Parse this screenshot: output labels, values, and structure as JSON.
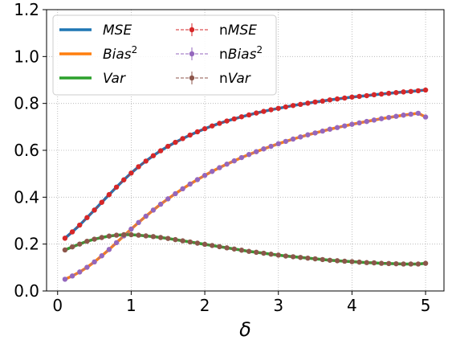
{
  "chart_data": {
    "type": "line",
    "title": "",
    "xlabel": "δ",
    "ylabel": "",
    "xlim": [
      -0.15,
      5.25
    ],
    "ylim": [
      0.0,
      1.2
    ],
    "xticks": [
      0,
      1,
      2,
      3,
      4,
      5
    ],
    "xtick_labels": [
      "0",
      "1",
      "2",
      "3",
      "4",
      "5"
    ],
    "yticks": [
      0.0,
      0.2,
      0.4,
      0.6,
      0.8,
      1.0,
      1.2
    ],
    "ytick_labels": [
      "0.0",
      "0.2",
      "0.4",
      "0.6",
      "0.8",
      "1.0",
      "1.2"
    ],
    "grid": true,
    "legend_position": "top-left",
    "legend_columns": 2,
    "x": [
      0.1,
      0.2,
      0.3,
      0.4,
      0.5,
      0.6,
      0.7,
      0.8,
      0.9,
      1.0,
      1.1,
      1.2,
      1.3,
      1.4,
      1.5,
      1.6,
      1.7,
      1.8,
      1.9,
      2.0,
      2.1,
      2.2,
      2.3,
      2.4,
      2.5,
      2.6,
      2.7,
      2.8,
      2.9,
      3.0,
      3.1,
      3.2,
      3.3,
      3.4,
      3.5,
      3.6,
      3.7,
      3.8,
      3.9,
      4.0,
      4.1,
      4.2,
      4.3,
      4.4,
      4.5,
      4.6,
      4.7,
      4.8,
      4.9,
      5.0
    ],
    "series": [
      {
        "name": "MSE",
        "name_parts": [
          "MSE",
          ""
        ],
        "kind": "line",
        "color": "#1f77b4",
        "values": [
          0.225,
          0.252,
          0.281,
          0.313,
          0.345,
          0.378,
          0.411,
          0.443,
          0.474,
          0.503,
          0.53,
          0.554,
          0.577,
          0.598,
          0.617,
          0.634,
          0.65,
          0.665,
          0.679,
          0.692,
          0.704,
          0.715,
          0.725,
          0.734,
          0.743,
          0.751,
          0.759,
          0.766,
          0.773,
          0.779,
          0.785,
          0.791,
          0.796,
          0.801,
          0.806,
          0.81,
          0.815,
          0.819,
          0.823,
          0.827,
          0.83,
          0.833,
          0.837,
          0.84,
          0.843,
          0.846,
          0.849,
          0.851,
          0.854,
          0.857
        ]
      },
      {
        "name": "Bias2",
        "name_parts": [
          "Bias",
          "2"
        ],
        "kind": "line",
        "color": "#ff7f0e",
        "values": [
          0.05,
          0.064,
          0.081,
          0.101,
          0.124,
          0.15,
          0.177,
          0.206,
          0.235,
          0.264,
          0.292,
          0.319,
          0.345,
          0.37,
          0.393,
          0.415,
          0.436,
          0.456,
          0.475,
          0.493,
          0.51,
          0.526,
          0.541,
          0.555,
          0.569,
          0.582,
          0.594,
          0.606,
          0.617,
          0.628,
          0.638,
          0.648,
          0.657,
          0.666,
          0.674,
          0.682,
          0.69,
          0.697,
          0.704,
          0.711,
          0.717,
          0.723,
          0.729,
          0.735,
          0.74,
          0.745,
          0.75,
          0.754,
          0.758,
          0.742
        ]
      },
      {
        "name": "Var",
        "name_parts": [
          "Var",
          ""
        ],
        "kind": "line",
        "color": "#2ca02c",
        "values": [
          0.175,
          0.188,
          0.2,
          0.212,
          0.221,
          0.228,
          0.234,
          0.238,
          0.24,
          0.24,
          0.238,
          0.235,
          0.232,
          0.228,
          0.224,
          0.219,
          0.214,
          0.209,
          0.204,
          0.199,
          0.194,
          0.189,
          0.184,
          0.179,
          0.174,
          0.169,
          0.165,
          0.161,
          0.157,
          0.153,
          0.149,
          0.146,
          0.143,
          0.14,
          0.137,
          0.134,
          0.131,
          0.129,
          0.127,
          0.125,
          0.123,
          0.121,
          0.12,
          0.118,
          0.117,
          0.116,
          0.115,
          0.115,
          0.115,
          0.118
        ]
      },
      {
        "name": "nMSE",
        "name_parts": [
          "n",
          "MSE",
          ""
        ],
        "kind": "marker",
        "color": "#d62728",
        "values": [
          0.225,
          0.252,
          0.281,
          0.313,
          0.345,
          0.378,
          0.411,
          0.443,
          0.474,
          0.503,
          0.53,
          0.554,
          0.577,
          0.598,
          0.617,
          0.634,
          0.65,
          0.665,
          0.679,
          0.692,
          0.704,
          0.715,
          0.725,
          0.734,
          0.743,
          0.751,
          0.759,
          0.766,
          0.773,
          0.779,
          0.785,
          0.791,
          0.796,
          0.801,
          0.806,
          0.81,
          0.815,
          0.819,
          0.823,
          0.827,
          0.83,
          0.833,
          0.837,
          0.84,
          0.843,
          0.846,
          0.849,
          0.851,
          0.854,
          0.857
        ]
      },
      {
        "name": "nBias2",
        "name_parts": [
          "n",
          "Bias",
          "2"
        ],
        "kind": "marker",
        "color": "#9467bd",
        "values": [
          0.05,
          0.064,
          0.081,
          0.101,
          0.124,
          0.15,
          0.177,
          0.206,
          0.235,
          0.264,
          0.292,
          0.319,
          0.345,
          0.37,
          0.393,
          0.415,
          0.436,
          0.456,
          0.475,
          0.493,
          0.51,
          0.526,
          0.541,
          0.555,
          0.569,
          0.582,
          0.594,
          0.606,
          0.617,
          0.628,
          0.638,
          0.648,
          0.657,
          0.666,
          0.674,
          0.682,
          0.69,
          0.697,
          0.704,
          0.711,
          0.717,
          0.723,
          0.729,
          0.735,
          0.74,
          0.745,
          0.75,
          0.754,
          0.758,
          0.742
        ]
      },
      {
        "name": "nVar",
        "name_parts": [
          "n",
          "Var",
          ""
        ],
        "kind": "marker",
        "color": "#8c564b",
        "values": [
          0.175,
          0.188,
          0.2,
          0.212,
          0.221,
          0.228,
          0.234,
          0.238,
          0.24,
          0.24,
          0.238,
          0.235,
          0.232,
          0.228,
          0.224,
          0.219,
          0.214,
          0.209,
          0.204,
          0.199,
          0.194,
          0.189,
          0.184,
          0.179,
          0.174,
          0.169,
          0.165,
          0.161,
          0.157,
          0.153,
          0.149,
          0.146,
          0.143,
          0.14,
          0.137,
          0.134,
          0.131,
          0.129,
          0.127,
          0.125,
          0.123,
          0.121,
          0.12,
          0.118,
          0.117,
          0.116,
          0.115,
          0.115,
          0.115,
          0.118
        ]
      }
    ]
  }
}
